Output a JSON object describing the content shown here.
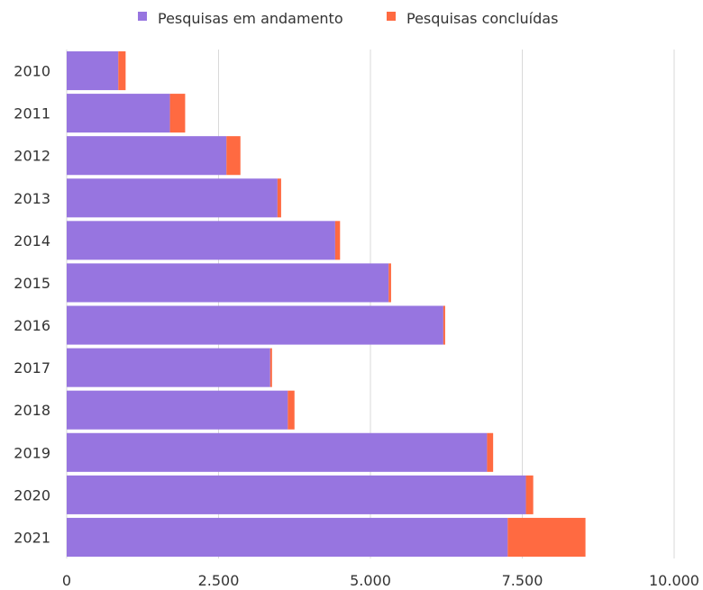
{
  "chart_data": {
    "type": "bar",
    "orientation": "horizontal",
    "stacked": true,
    "categories": [
      "2010",
      "2011",
      "2012",
      "2013",
      "2014",
      "2015",
      "2016",
      "2017",
      "2018",
      "2019",
      "2020",
      "2021"
    ],
    "series": [
      {
        "name": "Pesquisas em andamento",
        "color": "#9775E0",
        "values": [
          850,
          1700,
          2630,
          3470,
          4420,
          5300,
          6200,
          3350,
          3640,
          6920,
          7560,
          7260
        ]
      },
      {
        "name": "Pesquisas concluídas",
        "color": "#FF6A41",
        "values": [
          120,
          250,
          230,
          60,
          80,
          40,
          30,
          30,
          110,
          100,
          120,
          1280
        ]
      }
    ],
    "xlim": [
      0,
      10000
    ],
    "xticks": [
      "0",
      "2.500",
      "5.000",
      "7.500",
      "10.000"
    ],
    "xtick_values": [
      0,
      2500,
      5000,
      7500,
      10000
    ],
    "grid": true,
    "legend_position": "top-center"
  }
}
